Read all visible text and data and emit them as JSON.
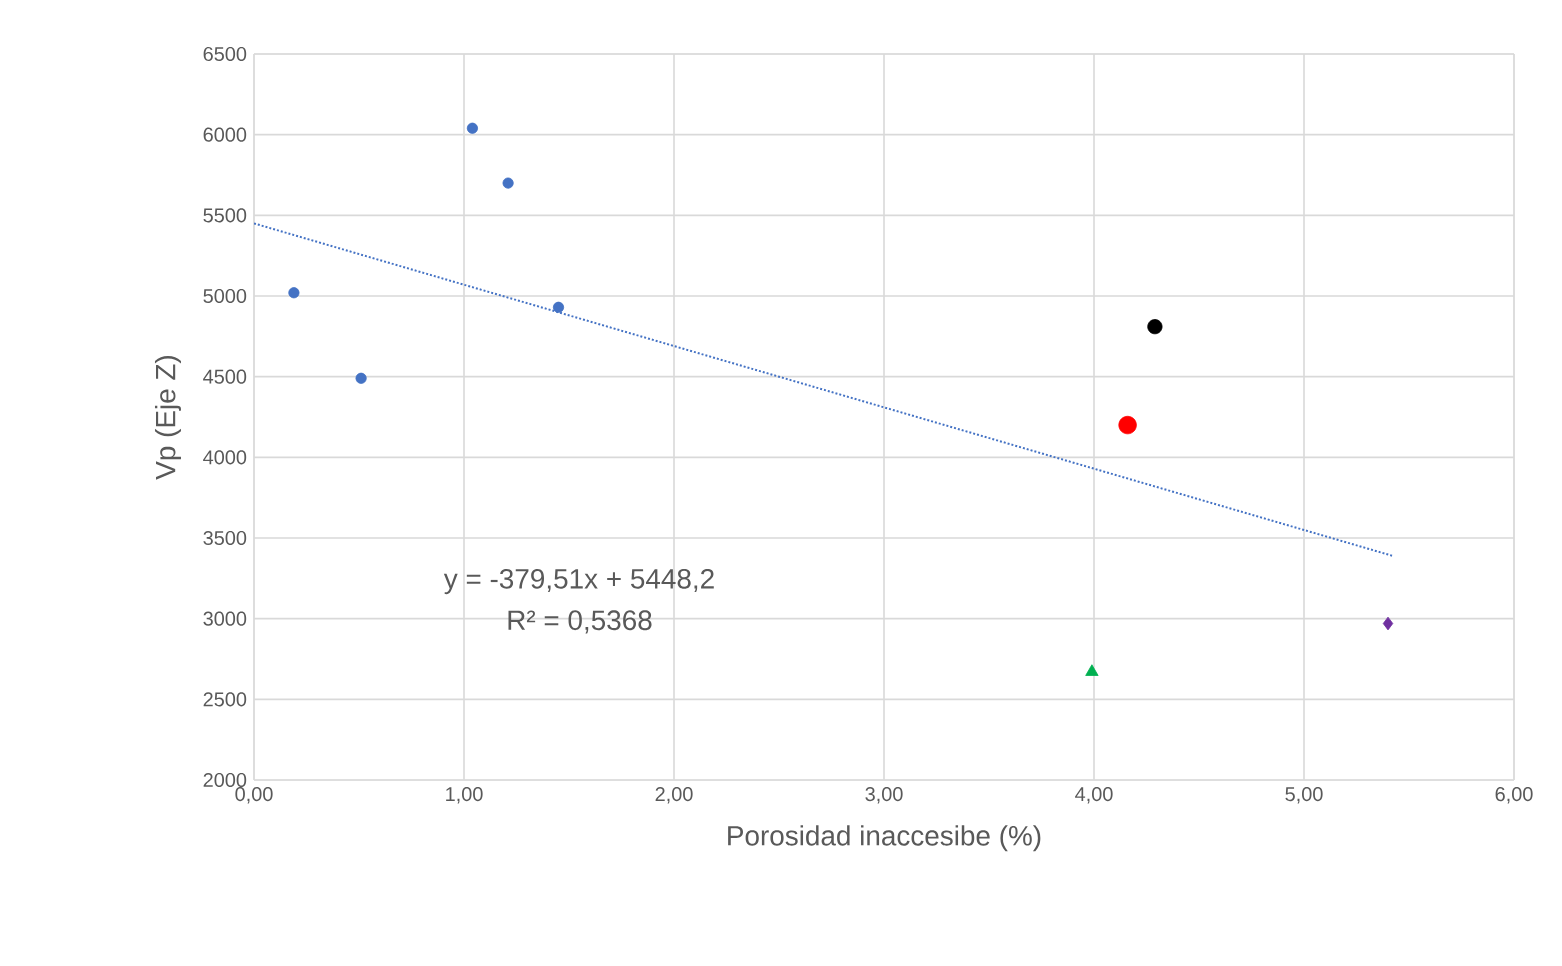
{
  "chart_data": {
    "type": "scatter",
    "xlabel": "Porosidad inaccesibe (%)",
    "ylabel": "Vp (Eje Z)",
    "xlim": [
      0,
      6
    ],
    "ylim": [
      2000,
      6500
    ],
    "xticks": [
      {
        "value": 0,
        "label": "0,00"
      },
      {
        "value": 1,
        "label": "1,00"
      },
      {
        "value": 2,
        "label": "2,00"
      },
      {
        "value": 3,
        "label": "3,00"
      },
      {
        "value": 4,
        "label": "4,00"
      },
      {
        "value": 5,
        "label": "5,00"
      },
      {
        "value": 6,
        "label": "6,00"
      }
    ],
    "yticks": [
      2000,
      2500,
      3000,
      3500,
      4000,
      4500,
      5000,
      5500,
      6000,
      6500
    ],
    "grid": true,
    "series": [
      {
        "color": "#4472c4",
        "marker": "circle",
        "x": [
          0.19,
          0.51,
          1.04,
          1.21,
          1.45
        ],
        "values": [
          5020,
          4490,
          6040,
          5700,
          4930
        ]
      },
      {
        "color": "#000000",
        "marker": "circle",
        "x": [
          4.29
        ],
        "values": [
          4810
        ]
      },
      {
        "color": "#ff0000",
        "marker": "circle",
        "x": [
          4.16
        ],
        "values": [
          4200
        ]
      },
      {
        "color": "#00b050",
        "marker": "triangle",
        "x": [
          3.99
        ],
        "values": [
          2670
        ]
      },
      {
        "color": "#7030a0",
        "marker": "diamond",
        "x": [
          5.4
        ],
        "values": [
          2970
        ]
      },
      {
        "type": "line",
        "color": "#4472c4",
        "marker": "none",
        "line_style": "dotted",
        "x": [
          0,
          5.42
        ],
        "values": [
          5450,
          3390
        ]
      }
    ],
    "annotations": [
      "y = -379,51x + 5448,2",
      "R² = 0,5368"
    ]
  }
}
